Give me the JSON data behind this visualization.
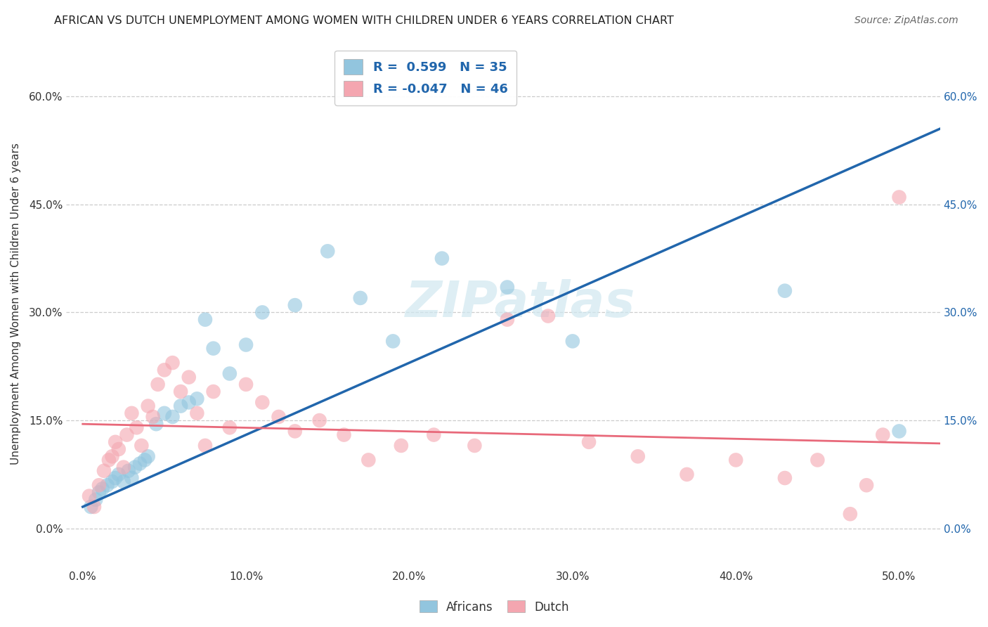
{
  "title": "AFRICAN VS DUTCH UNEMPLOYMENT AMONG WOMEN WITH CHILDREN UNDER 6 YEARS CORRELATION CHART",
  "source": "Source: ZipAtlas.com",
  "ylabel": "Unemployment Among Women with Children Under 6 years",
  "xlabel_ticks": [
    "0.0%",
    "10.0%",
    "20.0%",
    "30.0%",
    "40.0%",
    "50.0%"
  ],
  "xlabel_vals": [
    0.0,
    0.1,
    0.2,
    0.3,
    0.4,
    0.5
  ],
  "ylabel_ticks": [
    "0.0%",
    "15.0%",
    "30.0%",
    "45.0%",
    "60.0%"
  ],
  "ylabel_vals": [
    0.0,
    0.15,
    0.3,
    0.45,
    0.6
  ],
  "xlim": [
    -0.01,
    0.525
  ],
  "ylim": [
    -0.055,
    0.68
  ],
  "legend_africans": "Africans",
  "legend_dutch": "Dutch",
  "R_africans": " 0.599",
  "N_africans": "35",
  "R_dutch": "-0.047",
  "N_dutch": "46",
  "color_africans": "#92c5de",
  "color_dutch": "#f4a6b0",
  "line_color_africans": "#2166ac",
  "line_color_dutch": "#e8697a",
  "tick_color_right": "#2166ac",
  "tick_color_left": "#333333",
  "background_color": "#ffffff",
  "watermark": "ZIPatlas",
  "africans_x": [
    0.005,
    0.008,
    0.01,
    0.012,
    0.015,
    0.018,
    0.02,
    0.022,
    0.025,
    0.028,
    0.03,
    0.032,
    0.035,
    0.038,
    0.04,
    0.045,
    0.05,
    0.055,
    0.06,
    0.065,
    0.07,
    0.075,
    0.08,
    0.09,
    0.1,
    0.11,
    0.13,
    0.15,
    0.17,
    0.19,
    0.22,
    0.26,
    0.3,
    0.43,
    0.5
  ],
  "africans_y": [
    0.03,
    0.04,
    0.05,
    0.055,
    0.06,
    0.065,
    0.07,
    0.075,
    0.065,
    0.08,
    0.07,
    0.085,
    0.09,
    0.095,
    0.1,
    0.145,
    0.16,
    0.155,
    0.17,
    0.175,
    0.18,
    0.29,
    0.25,
    0.215,
    0.255,
    0.3,
    0.31,
    0.385,
    0.32,
    0.26,
    0.375,
    0.335,
    0.26,
    0.33,
    0.135
  ],
  "dutch_x": [
    0.004,
    0.007,
    0.01,
    0.013,
    0.016,
    0.018,
    0.02,
    0.022,
    0.025,
    0.027,
    0.03,
    0.033,
    0.036,
    0.04,
    0.043,
    0.046,
    0.05,
    0.055,
    0.06,
    0.065,
    0.07,
    0.075,
    0.08,
    0.09,
    0.1,
    0.11,
    0.12,
    0.13,
    0.145,
    0.16,
    0.175,
    0.195,
    0.215,
    0.24,
    0.26,
    0.285,
    0.31,
    0.34,
    0.37,
    0.4,
    0.43,
    0.45,
    0.47,
    0.48,
    0.49,
    0.5
  ],
  "dutch_y": [
    0.045,
    0.03,
    0.06,
    0.08,
    0.095,
    0.1,
    0.12,
    0.11,
    0.085,
    0.13,
    0.16,
    0.14,
    0.115,
    0.17,
    0.155,
    0.2,
    0.22,
    0.23,
    0.19,
    0.21,
    0.16,
    0.115,
    0.19,
    0.14,
    0.2,
    0.175,
    0.155,
    0.135,
    0.15,
    0.13,
    0.095,
    0.115,
    0.13,
    0.115,
    0.29,
    0.295,
    0.12,
    0.1,
    0.075,
    0.095,
    0.07,
    0.095,
    0.02,
    0.06,
    0.13,
    0.46
  ],
  "africans_line_x0": 0.0,
  "africans_line_y0": 0.03,
  "africans_line_x1": 0.525,
  "africans_line_y1": 0.555,
  "dutch_line_x0": 0.0,
  "dutch_line_y0": 0.145,
  "dutch_line_x1": 0.525,
  "dutch_line_y1": 0.118
}
